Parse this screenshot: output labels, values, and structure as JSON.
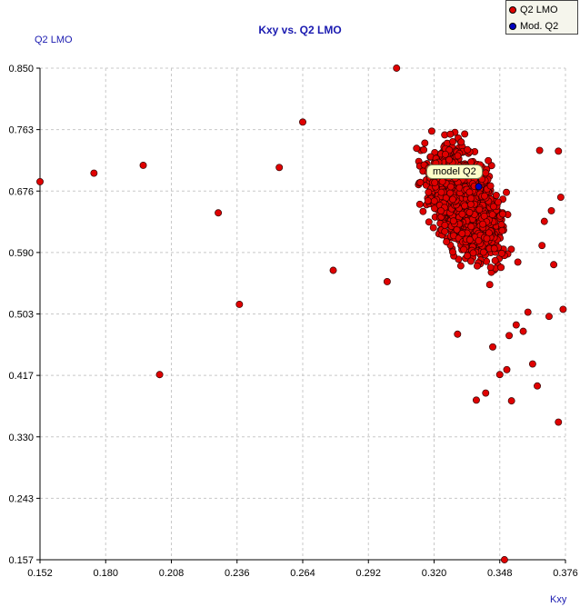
{
  "chart_data": {
    "type": "scatter",
    "title": "Kxy vs. Q2 LMO",
    "xlabel": "Kxy",
    "ylabel": "Q2 LMO",
    "xlim": [
      0.152,
      0.376
    ],
    "ylim": [
      0.157,
      0.85
    ],
    "x_ticks": [
      "0.152",
      "0.180",
      "0.208",
      "0.236",
      "0.264",
      "0.292",
      "0.320",
      "0.348",
      "0.376"
    ],
    "y_ticks": [
      "0.850",
      "0.763",
      "0.676",
      "0.590",
      "0.503",
      "0.417",
      "0.330",
      "0.243",
      "0.157"
    ],
    "grid": true,
    "legend_position": "top-right",
    "series": [
      {
        "name": "Q2 LMO",
        "color": "#e00000",
        "cluster": {
          "center": [
            0.333,
            0.66
          ],
          "spread": [
            0.009,
            0.055
          ],
          "count": 1700,
          "x_range": [
            0.3,
            0.358
          ],
          "y_range": [
            0.47,
            0.85
          ]
        },
        "points": [
          [
            0.152,
            0.69
          ],
          [
            0.175,
            0.702
          ],
          [
            0.196,
            0.713
          ],
          [
            0.203,
            0.418
          ],
          [
            0.228,
            0.646
          ],
          [
            0.237,
            0.517
          ],
          [
            0.254,
            0.71
          ],
          [
            0.264,
            0.774
          ],
          [
            0.277,
            0.565
          ],
          [
            0.3,
            0.549
          ],
          [
            0.304,
            0.85
          ],
          [
            0.33,
            0.475
          ],
          [
            0.338,
            0.382
          ],
          [
            0.342,
            0.392
          ],
          [
            0.345,
            0.457
          ],
          [
            0.348,
            0.418
          ],
          [
            0.351,
            0.425
          ],
          [
            0.352,
            0.473
          ],
          [
            0.353,
            0.381
          ],
          [
            0.35,
            0.157
          ],
          [
            0.355,
            0.488
          ],
          [
            0.358,
            0.479
          ],
          [
            0.36,
            0.506
          ],
          [
            0.362,
            0.433
          ],
          [
            0.364,
            0.402
          ],
          [
            0.365,
            0.734
          ],
          [
            0.366,
            0.6
          ],
          [
            0.367,
            0.634
          ],
          [
            0.369,
            0.5
          ],
          [
            0.371,
            0.573
          ],
          [
            0.373,
            0.351
          ],
          [
            0.373,
            0.733
          ],
          [
            0.374,
            0.668
          ],
          [
            0.375,
            0.51
          ],
          [
            0.37,
            0.649
          ]
        ]
      },
      {
        "name": "Mod. Q2",
        "color": "#0000c0",
        "points": [
          [
            0.339,
            0.683
          ]
        ]
      }
    ],
    "annotation": "model Q2"
  }
}
